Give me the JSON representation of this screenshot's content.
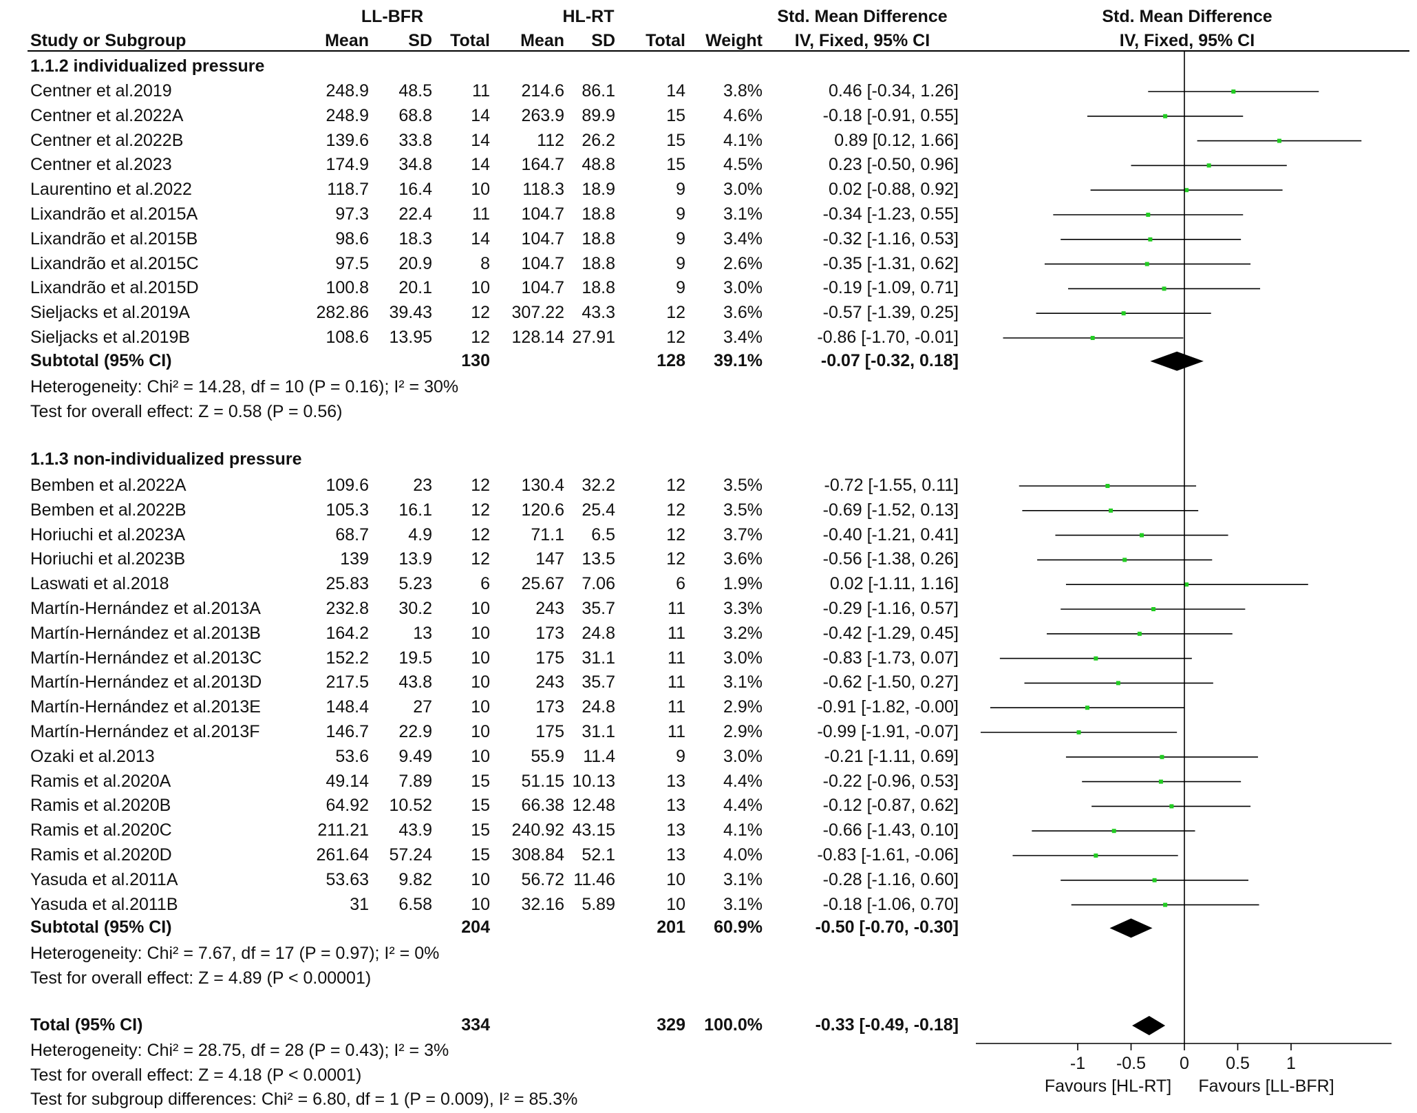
{
  "header": {
    "group1": "LL-BFR",
    "group2": "HL-RT",
    "smd_title": "Std. Mean Difference",
    "smd_method": "IV, Fixed, 95% CI",
    "plot_title": "Std. Mean Difference",
    "plot_method": "IV, Fixed, 95% CI",
    "study_col": "Study or Subgroup",
    "mean": "Mean",
    "sd": "SD",
    "total": "Total",
    "weight": "Weight"
  },
  "subgroups": [
    {
      "title": "1.1.2 individualized pressure",
      "studies": [
        {
          "name": "Centner et al.2019",
          "m1": "248.9",
          "sd1": "48.5",
          "n1": "11",
          "m2": "214.6",
          "sd2": "86.1",
          "n2": "14",
          "weight": "3.8%",
          "ci": "0.46 [-0.34, 1.26]",
          "est": 0.46,
          "lo": -0.34,
          "hi": 1.26
        },
        {
          "name": "Centner et al.2022A",
          "m1": "248.9",
          "sd1": "68.8",
          "n1": "14",
          "m2": "263.9",
          "sd2": "89.9",
          "n2": "15",
          "weight": "4.6%",
          "ci": "-0.18 [-0.91, 0.55]",
          "est": -0.18,
          "lo": -0.91,
          "hi": 0.55
        },
        {
          "name": "Centner et al.2022B",
          "m1": "139.6",
          "sd1": "33.8",
          "n1": "14",
          "m2": "112",
          "sd2": "26.2",
          "n2": "15",
          "weight": "4.1%",
          "ci": "0.89 [0.12, 1.66]",
          "est": 0.89,
          "lo": 0.12,
          "hi": 1.66
        },
        {
          "name": "Centner et al.2023",
          "m1": "174.9",
          "sd1": "34.8",
          "n1": "14",
          "m2": "164.7",
          "sd2": "48.8",
          "n2": "15",
          "weight": "4.5%",
          "ci": "0.23 [-0.50, 0.96]",
          "est": 0.23,
          "lo": -0.5,
          "hi": 0.96
        },
        {
          "name": "Laurentino et al.2022",
          "m1": "118.7",
          "sd1": "16.4",
          "n1": "10",
          "m2": "118.3",
          "sd2": "18.9",
          "n2": "9",
          "weight": "3.0%",
          "ci": "0.02 [-0.88, 0.92]",
          "est": 0.02,
          "lo": -0.88,
          "hi": 0.92
        },
        {
          "name": "Lixandrão et al.2015A",
          "m1": "97.3",
          "sd1": "22.4",
          "n1": "11",
          "m2": "104.7",
          "sd2": "18.8",
          "n2": "9",
          "weight": "3.1%",
          "ci": "-0.34 [-1.23, 0.55]",
          "est": -0.34,
          "lo": -1.23,
          "hi": 0.55
        },
        {
          "name": "Lixandrão et al.2015B",
          "m1": "98.6",
          "sd1": "18.3",
          "n1": "14",
          "m2": "104.7",
          "sd2": "18.8",
          "n2": "9",
          "weight": "3.4%",
          "ci": "-0.32 [-1.16, 0.53]",
          "est": -0.32,
          "lo": -1.16,
          "hi": 0.53
        },
        {
          "name": "Lixandrão et al.2015C",
          "m1": "97.5",
          "sd1": "20.9",
          "n1": "8",
          "m2": "104.7",
          "sd2": "18.8",
          "n2": "9",
          "weight": "2.6%",
          "ci": "-0.35 [-1.31, 0.62]",
          "est": -0.35,
          "lo": -1.31,
          "hi": 0.62
        },
        {
          "name": "Lixandrão et al.2015D",
          "m1": "100.8",
          "sd1": "20.1",
          "n1": "10",
          "m2": "104.7",
          "sd2": "18.8",
          "n2": "9",
          "weight": "3.0%",
          "ci": "-0.19 [-1.09, 0.71]",
          "est": -0.19,
          "lo": -1.09,
          "hi": 0.71
        },
        {
          "name": "Sieljacks et al.2019A",
          "m1": "282.86",
          "sd1": "39.43",
          "n1": "12",
          "m2": "307.22",
          "sd2": "43.3",
          "n2": "12",
          "weight": "3.6%",
          "ci": "-0.57 [-1.39, 0.25]",
          "est": -0.57,
          "lo": -1.39,
          "hi": 0.25
        },
        {
          "name": "Sieljacks et al.2019B",
          "m1": "108.6",
          "sd1": "13.95",
          "n1": "12",
          "m2": "128.14",
          "sd2": "27.91",
          "n2": "12",
          "weight": "3.4%",
          "ci": "-0.86 [-1.70, -0.01]",
          "est": -0.86,
          "lo": -1.7,
          "hi": -0.01
        }
      ],
      "subtotal": {
        "label": "Subtotal (95% CI)",
        "n1": "130",
        "n2": "128",
        "weight": "39.1%",
        "ci": "-0.07 [-0.32, 0.18]",
        "est": -0.07,
        "lo": -0.32,
        "hi": 0.18
      },
      "heterogeneity": "Heterogeneity: Chi² = 14.28, df = 10 (P = 0.16); I² = 30%",
      "overall": "Test for overall effect: Z = 0.58 (P = 0.56)"
    },
    {
      "title": "1.1.3 non-individualized pressure",
      "studies": [
        {
          "name": "Bemben et al.2022A",
          "m1": "109.6",
          "sd1": "23",
          "n1": "12",
          "m2": "130.4",
          "sd2": "32.2",
          "n2": "12",
          "weight": "3.5%",
          "ci": "-0.72 [-1.55, 0.11]",
          "est": -0.72,
          "lo": -1.55,
          "hi": 0.11
        },
        {
          "name": "Bemben et al.2022B",
          "m1": "105.3",
          "sd1": "16.1",
          "n1": "12",
          "m2": "120.6",
          "sd2": "25.4",
          "n2": "12",
          "weight": "3.5%",
          "ci": "-0.69 [-1.52, 0.13]",
          "est": -0.69,
          "lo": -1.52,
          "hi": 0.13
        },
        {
          "name": "Horiuchi et al.2023A",
          "m1": "68.7",
          "sd1": "4.9",
          "n1": "12",
          "m2": "71.1",
          "sd2": "6.5",
          "n2": "12",
          "weight": "3.7%",
          "ci": "-0.40 [-1.21, 0.41]",
          "est": -0.4,
          "lo": -1.21,
          "hi": 0.41
        },
        {
          "name": "Horiuchi et al.2023B",
          "m1": "139",
          "sd1": "13.9",
          "n1": "12",
          "m2": "147",
          "sd2": "13.5",
          "n2": "12",
          "weight": "3.6%",
          "ci": "-0.56 [-1.38, 0.26]",
          "est": -0.56,
          "lo": -1.38,
          "hi": 0.26
        },
        {
          "name": "Laswati et al.2018",
          "m1": "25.83",
          "sd1": "5.23",
          "n1": "6",
          "m2": "25.67",
          "sd2": "7.06",
          "n2": "6",
          "weight": "1.9%",
          "ci": "0.02 [-1.11, 1.16]",
          "est": 0.02,
          "lo": -1.11,
          "hi": 1.16
        },
        {
          "name": "Martín-Hernández et al.2013A",
          "m1": "232.8",
          "sd1": "30.2",
          "n1": "10",
          "m2": "243",
          "sd2": "35.7",
          "n2": "11",
          "weight": "3.3%",
          "ci": "-0.29 [-1.16, 0.57]",
          "est": -0.29,
          "lo": -1.16,
          "hi": 0.57
        },
        {
          "name": "Martín-Hernández et al.2013B",
          "m1": "164.2",
          "sd1": "13",
          "n1": "10",
          "m2": "173",
          "sd2": "24.8",
          "n2": "11",
          "weight": "3.2%",
          "ci": "-0.42 [-1.29, 0.45]",
          "est": -0.42,
          "lo": -1.29,
          "hi": 0.45
        },
        {
          "name": "Martín-Hernández et al.2013C",
          "m1": "152.2",
          "sd1": "19.5",
          "n1": "10",
          "m2": "175",
          "sd2": "31.1",
          "n2": "11",
          "weight": "3.0%",
          "ci": "-0.83 [-1.73, 0.07]",
          "est": -0.83,
          "lo": -1.73,
          "hi": 0.07
        },
        {
          "name": "Martín-Hernández et al.2013D",
          "m1": "217.5",
          "sd1": "43.8",
          "n1": "10",
          "m2": "243",
          "sd2": "35.7",
          "n2": "11",
          "weight": "3.1%",
          "ci": "-0.62 [-1.50, 0.27]",
          "est": -0.62,
          "lo": -1.5,
          "hi": 0.27
        },
        {
          "name": "Martín-Hernández et al.2013E",
          "m1": "148.4",
          "sd1": "27",
          "n1": "10",
          "m2": "173",
          "sd2": "24.8",
          "n2": "11",
          "weight": "2.9%",
          "ci": "-0.91 [-1.82, -0.00]",
          "est": -0.91,
          "lo": -1.82,
          "hi": -0.0
        },
        {
          "name": "Martín-Hernández et al.2013F",
          "m1": "146.7",
          "sd1": "22.9",
          "n1": "10",
          "m2": "175",
          "sd2": "31.1",
          "n2": "11",
          "weight": "2.9%",
          "ci": "-0.99 [-1.91, -0.07]",
          "est": -0.99,
          "lo": -1.91,
          "hi": -0.07
        },
        {
          "name": "Ozaki et al.2013",
          "m1": "53.6",
          "sd1": "9.49",
          "n1": "10",
          "m2": "55.9",
          "sd2": "11.4",
          "n2": "9",
          "weight": "3.0%",
          "ci": "-0.21 [-1.11, 0.69]",
          "est": -0.21,
          "lo": -1.11,
          "hi": 0.69
        },
        {
          "name": "Ramis et al.2020A",
          "m1": "49.14",
          "sd1": "7.89",
          "n1": "15",
          "m2": "51.15",
          "sd2": "10.13",
          "n2": "13",
          "weight": "4.4%",
          "ci": "-0.22 [-0.96, 0.53]",
          "est": -0.22,
          "lo": -0.96,
          "hi": 0.53
        },
        {
          "name": "Ramis et al.2020B",
          "m1": "64.92",
          "sd1": "10.52",
          "n1": "15",
          "m2": "66.38",
          "sd2": "12.48",
          "n2": "13",
          "weight": "4.4%",
          "ci": "-0.12 [-0.87, 0.62]",
          "est": -0.12,
          "lo": -0.87,
          "hi": 0.62
        },
        {
          "name": "Ramis et al.2020C",
          "m1": "211.21",
          "sd1": "43.9",
          "n1": "15",
          "m2": "240.92",
          "sd2": "43.15",
          "n2": "13",
          "weight": "4.1%",
          "ci": "-0.66 [-1.43, 0.10]",
          "est": -0.66,
          "lo": -1.43,
          "hi": 0.1
        },
        {
          "name": "Ramis et al.2020D",
          "m1": "261.64",
          "sd1": "57.24",
          "n1": "15",
          "m2": "308.84",
          "sd2": "52.1",
          "n2": "13",
          "weight": "4.0%",
          "ci": "-0.83 [-1.61, -0.06]",
          "est": -0.83,
          "lo": -1.61,
          "hi": -0.06
        },
        {
          "name": "Yasuda et al.2011A",
          "m1": "53.63",
          "sd1": "9.82",
          "n1": "10",
          "m2": "56.72",
          "sd2": "11.46",
          "n2": "10",
          "weight": "3.1%",
          "ci": "-0.28 [-1.16, 0.60]",
          "est": -0.28,
          "lo": -1.16,
          "hi": 0.6
        },
        {
          "name": "Yasuda et al.2011B",
          "m1": "31",
          "sd1": "6.58",
          "n1": "10",
          "m2": "32.16",
          "sd2": "5.89",
          "n2": "10",
          "weight": "3.1%",
          "ci": "-0.18 [-1.06, 0.70]",
          "est": -0.18,
          "lo": -1.06,
          "hi": 0.7
        }
      ],
      "subtotal": {
        "label": "Subtotal (95% CI)",
        "n1": "204",
        "n2": "201",
        "weight": "60.9%",
        "ci": "-0.50 [-0.70, -0.30]",
        "est": -0.5,
        "lo": -0.7,
        "hi": -0.3
      },
      "heterogeneity": "Heterogeneity: Chi² = 7.67, df = 17 (P = 0.97); I² = 0%",
      "overall": "Test for overall effect: Z = 4.89 (P < 0.00001)"
    }
  ],
  "total": {
    "label": "Total (95% CI)",
    "n1": "334",
    "n2": "329",
    "weight": "100.0%",
    "ci": "-0.33 [-0.49, -0.18]",
    "est": -0.33,
    "lo": -0.49,
    "hi": -0.18
  },
  "footer": {
    "heterogeneity": "Heterogeneity: Chi² = 28.75, df = 28 (P = 0.43); I² = 3%",
    "overall": "Test for overall effect: Z = 4.18 (P < 0.0001)",
    "subgroup": "Test for subgroup differences: Chi² = 6.80, df = 1 (P = 0.009), I² = 85.3%"
  },
  "colors": {
    "point": "#22cc22",
    "line": "#000000"
  },
  "chart_data": {
    "type": "forest",
    "title": "Std. Mean Difference",
    "xlabel_left": "Favours [HL-RT]",
    "xlabel_right": "Favours [LL-BFR]",
    "xlim": [
      -2,
      2
    ],
    "ticks": [
      -1,
      -0.5,
      0,
      0.5,
      1
    ],
    "tick_labels": [
      "-1",
      "-0.5",
      "0",
      "0.5",
      "1"
    ]
  }
}
